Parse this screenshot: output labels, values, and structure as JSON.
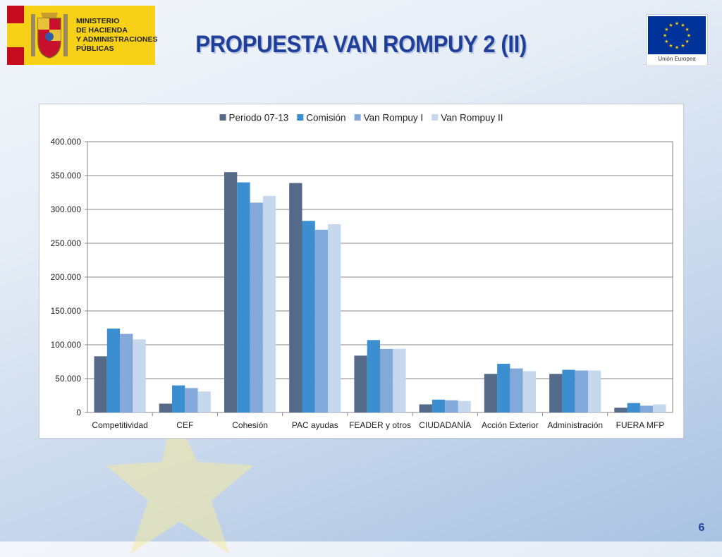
{
  "header": {
    "title": "PROPUESTA VAN ROMPUY 2 (II)",
    "ministry_logo_lines": [
      "MINISTERIO",
      "DE HACIENDA",
      "Y ADMINISTRACIONES",
      "PÚBLICAS"
    ],
    "eu_logo_caption": "Unión Europea"
  },
  "footer": {
    "page_number": "6"
  },
  "colors": {
    "title": "#1f3f9b",
    "series": [
      "#556a88",
      "#3b8ed0",
      "#82a9da",
      "#c6d8ee"
    ]
  },
  "chart_data": {
    "type": "bar",
    "categories": [
      "Competitividad",
      "CEF",
      "Cohesión",
      "PAC ayudas",
      "FEADER y otros",
      "CIUDADANÍA",
      "Acción Exterior",
      "Administración",
      "FUERA MFP"
    ],
    "series": [
      {
        "name": "Periodo 07-13",
        "values": [
          83000,
          13000,
          355000,
          339000,
          84000,
          12000,
          57000,
          57000,
          7000
        ]
      },
      {
        "name": "Comisión",
        "values": [
          124000,
          40000,
          340000,
          283000,
          107000,
          19000,
          72000,
          63000,
          14000
        ]
      },
      {
        "name": "Van Rompuy I",
        "values": [
          116000,
          36000,
          310000,
          270000,
          94000,
          18000,
          65000,
          62000,
          10000
        ]
      },
      {
        "name": "Van Rompuy II",
        "values": [
          108000,
          31000,
          320000,
          278000,
          94000,
          17000,
          61000,
          62000,
          12000
        ]
      }
    ],
    "ylim": [
      0,
      400000
    ],
    "yticks": [
      0,
      50000,
      100000,
      150000,
      200000,
      250000,
      300000,
      350000,
      400000
    ],
    "ytick_labels": [
      "0",
      "50.000",
      "100.000",
      "150.000",
      "200.000",
      "250.000",
      "300.000",
      "350.000",
      "400.000"
    ],
    "grid": true,
    "legend": "top-center"
  }
}
